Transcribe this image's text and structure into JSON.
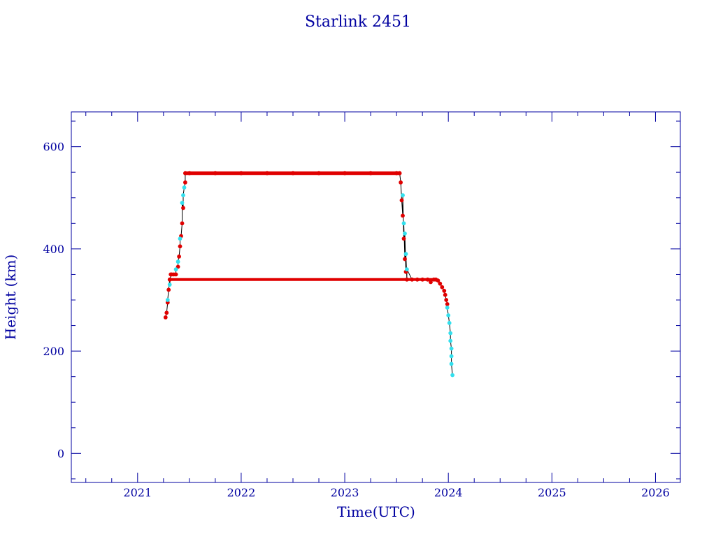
{
  "chart_data": {
    "type": "scatter",
    "title": "Starlink 2451",
    "xlabel": "Time(UTC)",
    "ylabel": "Height (km)",
    "xlim": [
      2020.36,
      2026.24
    ],
    "ylim": [
      -57,
      668
    ],
    "xticks": [
      2021,
      2022,
      2023,
      2024,
      2025,
      2026
    ],
    "yticks": [
      0,
      200,
      400,
      600
    ],
    "grid": false,
    "colors": {
      "axis": "#0000a0",
      "line": "#000000",
      "primary": "#e00000",
      "secondary": "#33e0ee"
    },
    "series": [
      {
        "color": "#e00000",
        "points": [
          [
            2021.27,
            266
          ],
          [
            2021.28,
            275
          ],
          [
            2021.29,
            295
          ],
          [
            2021.3,
            320
          ],
          [
            2021.31,
            340
          ],
          [
            2021.32,
            350
          ],
          [
            2021.33,
            350
          ],
          [
            2021.35,
            350
          ],
          [
            2021.37,
            350
          ],
          [
            2021.39,
            365
          ],
          [
            2021.4,
            385
          ],
          [
            2021.41,
            405
          ],
          [
            2021.42,
            425
          ],
          [
            2021.43,
            450
          ],
          [
            2021.44,
            480
          ],
          [
            2021.46,
            530
          ],
          [
            2021.46,
            548
          ],
          [
            2021.5,
            548
          ],
          [
            2021.75,
            548
          ],
          [
            2022.0,
            548
          ],
          [
            2022.25,
            548
          ],
          [
            2022.5,
            548
          ],
          [
            2022.75,
            548
          ],
          [
            2023.0,
            548
          ],
          [
            2023.25,
            548
          ],
          [
            2023.5,
            548
          ],
          [
            2023.53,
            548
          ],
          [
            2023.54,
            530
          ],
          [
            2023.55,
            495
          ],
          [
            2023.56,
            465
          ],
          [
            2023.57,
            420
          ],
          [
            2023.58,
            380
          ],
          [
            2023.59,
            355
          ],
          [
            2023.6,
            340
          ],
          [
            2023.65,
            340
          ],
          [
            2023.7,
            340
          ],
          [
            2023.75,
            340
          ],
          [
            2023.8,
            340
          ],
          [
            2023.83,
            335
          ],
          [
            2023.86,
            340
          ],
          [
            2023.88,
            340
          ],
          [
            2023.9,
            338
          ],
          [
            2023.92,
            332
          ],
          [
            2023.94,
            325
          ],
          [
            2023.96,
            318
          ],
          [
            2023.97,
            310
          ],
          [
            2023.98,
            300
          ],
          [
            2023.99,
            292
          ]
        ]
      },
      {
        "color": "#33e0ee",
        "points": [
          [
            2021.29,
            300
          ],
          [
            2021.31,
            330
          ],
          [
            2021.37,
            360
          ],
          [
            2021.39,
            375
          ],
          [
            2021.41,
            420
          ],
          [
            2021.43,
            490
          ],
          [
            2021.44,
            505
          ],
          [
            2021.45,
            520
          ],
          [
            2023.56,
            505
          ],
          [
            2023.57,
            450
          ],
          [
            2023.58,
            430
          ],
          [
            2023.59,
            390
          ],
          [
            2023.6,
            360
          ],
          [
            2023.99,
            285
          ],
          [
            2024.0,
            270
          ],
          [
            2024.01,
            255
          ],
          [
            2024.02,
            235
          ],
          [
            2024.02,
            220
          ],
          [
            2024.03,
            205
          ],
          [
            2024.03,
            190
          ],
          [
            2024.03,
            175
          ],
          [
            2024.04,
            153
          ]
        ]
      }
    ]
  }
}
